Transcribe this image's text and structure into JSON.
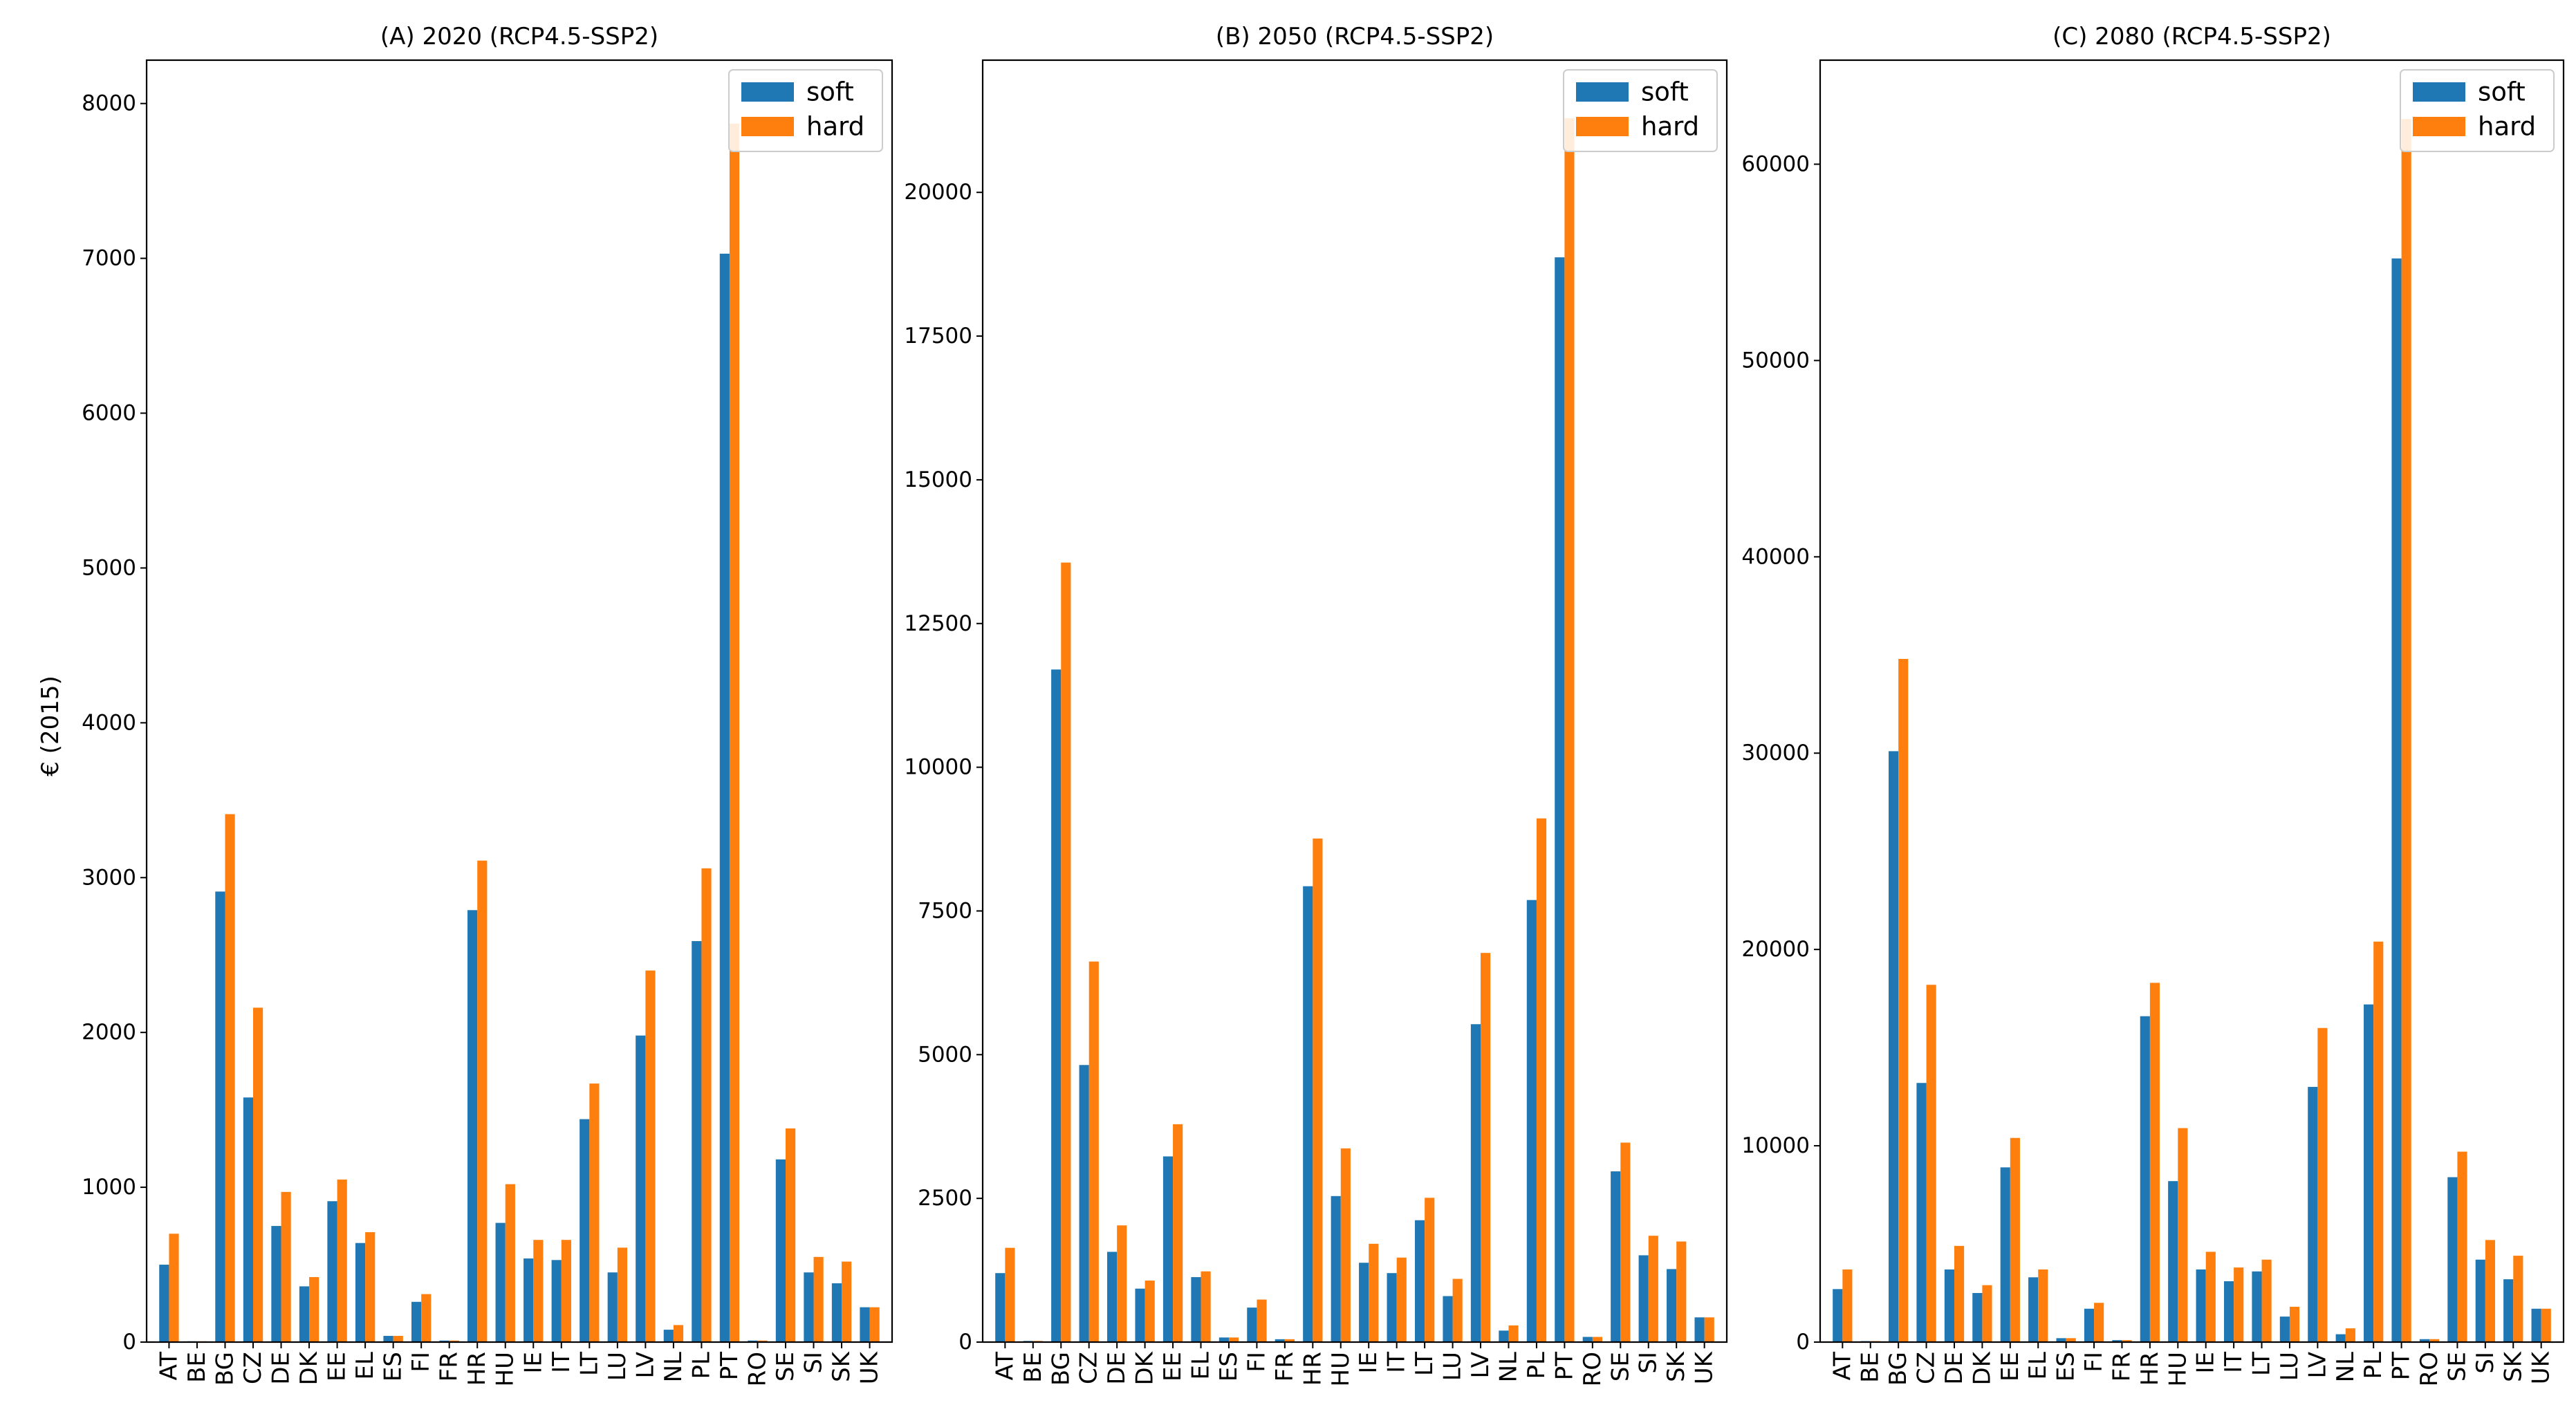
{
  "figure": {
    "ylabel": "€ (2015)",
    "colors": {
      "soft": "#1f77b4",
      "hard": "#ff7f0e"
    }
  },
  "chart_data": [
    {
      "type": "bar",
      "title": "(A) 2020 (RCP4.5-SSP2)",
      "xlabel": "",
      "ylabel": "€ (2015)",
      "ylim": [
        0,
        8280
      ],
      "yticks": [
        0,
        1000,
        2000,
        3000,
        4000,
        5000,
        6000,
        7000,
        8000
      ],
      "legend": "top-right",
      "categories": [
        "AT",
        "BE",
        "BG",
        "CZ",
        "DE",
        "DK",
        "EE",
        "EL",
        "ES",
        "FI",
        "FR",
        "HR",
        "HU",
        "IE",
        "IT",
        "LT",
        "LU",
        "LV",
        "NL",
        "PL",
        "PT",
        "RO",
        "SE",
        "SI",
        "SK",
        "UK"
      ],
      "series": [
        {
          "name": "soft",
          "values": [
            500,
            5,
            2910,
            1580,
            750,
            360,
            910,
            640,
            40,
            260,
            10,
            2790,
            770,
            540,
            530,
            1440,
            450,
            1980,
            80,
            2590,
            7030,
            10,
            1180,
            450,
            380,
            225
          ]
        },
        {
          "name": "hard",
          "values": [
            700,
            5,
            3410,
            2160,
            970,
            420,
            1050,
            710,
            40,
            310,
            10,
            3110,
            1020,
            660,
            660,
            1670,
            610,
            2400,
            110,
            3060,
            7870,
            10,
            1380,
            550,
            520,
            225
          ]
        }
      ]
    },
    {
      "type": "bar",
      "title": "(B) 2050 (RCP4.5-SSP2)",
      "xlabel": "",
      "ylabel": "",
      "ylim": [
        0,
        22300
      ],
      "yticks": [
        0,
        2500,
        5000,
        7500,
        10000,
        12500,
        15000,
        17500,
        20000
      ],
      "legend": "top-right",
      "categories": [
        "AT",
        "BE",
        "BG",
        "CZ",
        "DE",
        "DK",
        "EE",
        "EL",
        "ES",
        "FI",
        "FR",
        "HR",
        "HU",
        "IE",
        "IT",
        "LT",
        "LU",
        "LV",
        "NL",
        "PL",
        "PT",
        "RO",
        "SE",
        "SI",
        "SK",
        "UK"
      ],
      "series": [
        {
          "name": "soft",
          "values": [
            1200,
            20,
            11700,
            4820,
            1570,
            930,
            3230,
            1130,
            80,
            600,
            50,
            7930,
            2540,
            1380,
            1200,
            2120,
            800,
            5530,
            200,
            7690,
            18870,
            90,
            2970,
            1510,
            1270,
            430
          ]
        },
        {
          "name": "hard",
          "values": [
            1640,
            20,
            13560,
            6620,
            2030,
            1070,
            3790,
            1230,
            80,
            740,
            50,
            8760,
            3370,
            1710,
            1470,
            2510,
            1100,
            6770,
            290,
            9110,
            21290,
            90,
            3470,
            1850,
            1750,
            430
          ]
        }
      ]
    },
    {
      "type": "bar",
      "title": "(C) 2080 (RCP4.5-SSP2)",
      "xlabel": "",
      "ylabel": "",
      "ylim": [
        0,
        65300
      ],
      "yticks": [
        0,
        10000,
        20000,
        30000,
        40000,
        50000,
        60000
      ],
      "legend": "top-right",
      "categories": [
        "AT",
        "BE",
        "BG",
        "CZ",
        "DE",
        "DK",
        "EE",
        "EL",
        "ES",
        "FI",
        "FR",
        "HR",
        "HU",
        "IE",
        "IT",
        "LT",
        "LU",
        "LV",
        "NL",
        "PL",
        "PT",
        "RO",
        "SE",
        "SI",
        "SK",
        "UK"
      ],
      "series": [
        {
          "name": "soft",
          "values": [
            2700,
            50,
            30100,
            13200,
            3700,
            2500,
            8900,
            3300,
            200,
            1700,
            100,
            16600,
            8200,
            3700,
            3100,
            3600,
            1300,
            13000,
            400,
            17200,
            55200,
            150,
            8400,
            4200,
            3200,
            1700
          ]
        },
        {
          "name": "hard",
          "values": [
            3700,
            50,
            34800,
            18200,
            4900,
            2900,
            10400,
            3700,
            200,
            2000,
            100,
            18300,
            10900,
            4600,
            3800,
            4200,
            1800,
            16000,
            700,
            20400,
            62300,
            150,
            9700,
            5200,
            4400,
            1700
          ]
        }
      ]
    }
  ]
}
